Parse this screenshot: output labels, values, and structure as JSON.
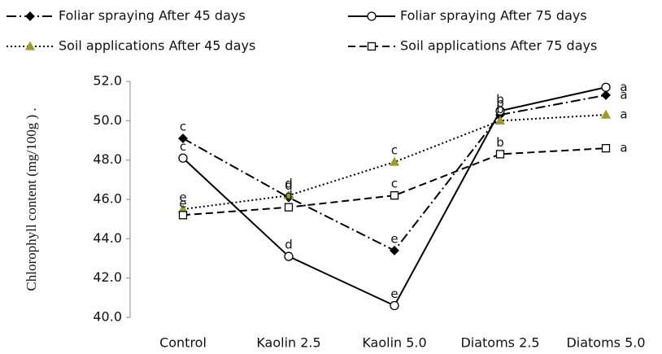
{
  "chart_data": {
    "type": "line",
    "y_label": "Chlorophyll content (mg/100g ) .",
    "categories": [
      "Control",
      "Kaolin 2.5",
      "Kaolin 5.0",
      "Diatoms 2.5",
      "Diatoms 5.0"
    ],
    "series": [
      {
        "name": "Foliar spraying After 45 days",
        "color": "#000000",
        "marker": "diamond",
        "marker_fill": "#000000",
        "line_style": "dashdot",
        "values": [
          49.1,
          46.1,
          43.4,
          50.3,
          51.3
        ],
        "letters": [
          "c",
          "d",
          "e",
          "b",
          "a"
        ]
      },
      {
        "name": "Foliar spraying After 75 days",
        "color": "#000000",
        "marker": "circle",
        "marker_fill": "#ffffff",
        "line_style": "solid",
        "values": [
          48.1,
          43.1,
          40.6,
          50.5,
          51.7
        ],
        "letters": [
          "c",
          "d",
          "e",
          "b",
          "a"
        ]
      },
      {
        "name": "Soil applications After 45 days",
        "color": "#000000",
        "marker": "triangle",
        "marker_fill": "#9a9a30",
        "line_style": "dotted",
        "values": [
          45.5,
          46.2,
          47.9,
          50.0,
          50.3
        ],
        "letters": [
          "e",
          "d",
          "c",
          "b",
          "a"
        ]
      },
      {
        "name": "Soil applications After 75 days",
        "color": "#000000",
        "marker": "square",
        "marker_fill": "#ffffff",
        "line_style": "dashed",
        "values": [
          45.2,
          45.6,
          46.2,
          48.3,
          48.6
        ],
        "letters": [
          "e",
          "d",
          "c",
          "b",
          "a"
        ]
      }
    ],
    "ylim": [
      40,
      52
    ],
    "yticks": [
      {
        "value": 40,
        "label": "40.0"
      },
      {
        "value": 42,
        "label": "42.0"
      },
      {
        "value": 44,
        "label": "44.0"
      },
      {
        "value": 46,
        "label": "46.0"
      },
      {
        "value": 48,
        "label": "48.0"
      },
      {
        "value": 50,
        "label": "50.0"
      },
      {
        "value": 52,
        "label": "52.0"
      }
    ],
    "legend": "top"
  }
}
